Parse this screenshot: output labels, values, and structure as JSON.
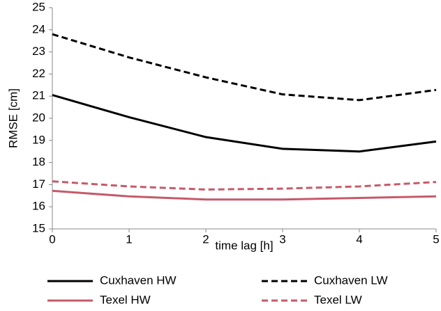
{
  "chart_data": {
    "type": "line",
    "x_label": "time lag [h]",
    "y_label": "RMSE [cm]",
    "x": [
      0,
      1,
      2,
      3,
      4,
      5
    ],
    "xlim": [
      0,
      5
    ],
    "xticks": [
      0,
      1,
      2,
      3,
      4,
      5
    ],
    "ylim": [
      15,
      25
    ],
    "yticks": [
      15,
      16,
      17,
      18,
      19,
      20,
      21,
      22,
      23,
      24,
      25
    ],
    "grid": false,
    "legend": "bottom",
    "series": [
      {
        "name": "Cuxhaven HW",
        "color": "#000000",
        "dash": "solid",
        "values": [
          21.05,
          20.05,
          19.15,
          18.62,
          18.5,
          18.95
        ]
      },
      {
        "name": "Cuxhaven LW",
        "color": "#000000",
        "dash": "dashed",
        "values": [
          23.8,
          22.75,
          21.85,
          21.08,
          20.82,
          21.28
        ]
      },
      {
        "name": "Texel HW",
        "color": "#c55a6a",
        "dash": "solid",
        "values": [
          16.72,
          16.47,
          16.33,
          16.33,
          16.4,
          16.47
        ]
      },
      {
        "name": "Texel LW",
        "color": "#c55a6a",
        "dash": "dashed",
        "values": [
          17.15,
          16.92,
          16.78,
          16.82,
          16.92,
          17.12
        ]
      }
    ]
  }
}
